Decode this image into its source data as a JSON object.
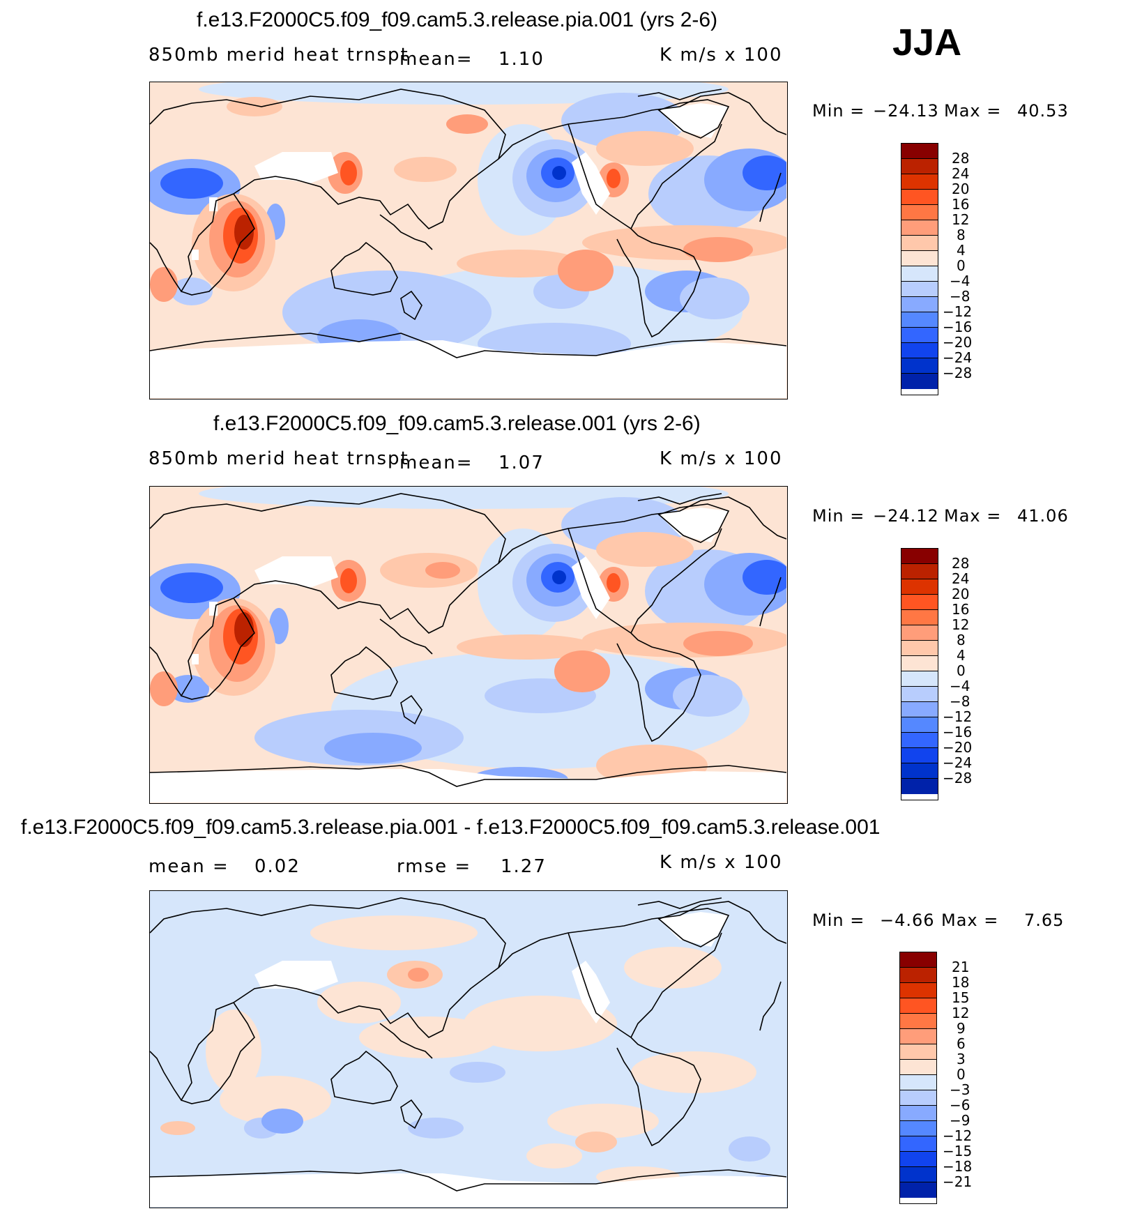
{
  "season_label": "JJA",
  "panels": [
    {
      "title": "f.e13.F2000C5.f09_f09.cam5.3.release.pia.001 (yrs 2-6)",
      "variable": "850mb merid heat trnspt",
      "mean_label": "mean=",
      "mean_value": "1.10",
      "units": "K m/s x 100",
      "min_label": "Min =",
      "min_value": "−24.13",
      "max_label": "Max =",
      "max_value": "40.53",
      "colorbar_ticks": [
        "28",
        "24",
        "20",
        "16",
        "12",
        "8",
        "4",
        "0",
        "−4",
        "−8",
        "−12",
        "−16",
        "−20",
        "−24",
        "−28"
      ]
    },
    {
      "title": "f.e13.F2000C5.f09_f09.cam5.3.release.001 (yrs 2-6)",
      "variable": "850mb merid heat trnspt",
      "mean_label": "mean=",
      "mean_value": "1.07",
      "units": "K m/s x 100",
      "min_label": "Min =",
      "min_value": "−24.12",
      "max_label": "Max =",
      "max_value": "41.06",
      "colorbar_ticks": [
        "28",
        "24",
        "20",
        "16",
        "12",
        "8",
        "4",
        "0",
        "−4",
        "−8",
        "−12",
        "−16",
        "−20",
        "−24",
        "−28"
      ]
    },
    {
      "title": "f.e13.F2000C5.f09_f09.cam5.3.release.pia.001 - f.e13.F2000C5.f09_f09.cam5.3.release.001",
      "mean_label": "mean =",
      "mean_value": "0.02",
      "rmse_label": "rmse =",
      "rmse_value": "1.27",
      "units": "K m/s x 100",
      "min_label": "Min =",
      "min_value": "−4.66",
      "max_label": "Max =",
      "max_value": "7.65",
      "colorbar_ticks": [
        "21",
        "18",
        "15",
        "12",
        "9",
        "6",
        "3",
        "0",
        "−3",
        "−6",
        "−9",
        "−12",
        "−15",
        "−18",
        "−21"
      ]
    }
  ],
  "colors": {
    "palette": [
      "#000080",
      "#0022aa",
      "#0033cc",
      "#1144ee",
      "#3366ff",
      "#5588ff",
      "#88aaff",
      "#b8cdfd",
      "#d6e6fb",
      "#fde4d4",
      "#ffc8ab",
      "#ff9d7a",
      "#ff7744",
      "#ff5522",
      "#dd3300",
      "#bb2200",
      "#880000"
    ],
    "land_mask": "#ffffff",
    "coastline": "#000000"
  }
}
